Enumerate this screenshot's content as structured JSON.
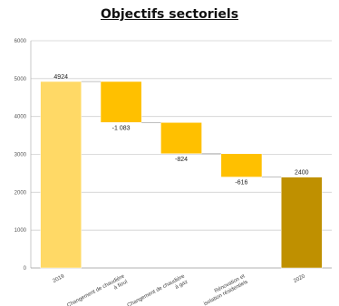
{
  "chart_data": {
    "type": "bar",
    "title": "Objectifs sectoriels",
    "xlabel": "",
    "ylabel": "",
    "ylim": [
      0,
      6000
    ],
    "yticks": [
      0,
      1000,
      2000,
      3000,
      4000,
      5000,
      6000
    ],
    "grid": true,
    "legend": "none",
    "categories": [
      "2019",
      "Changement de chaudière à fioul",
      "Changement de chaudière à gaz",
      "Rénovation et isolation résidentiels",
      "2020"
    ],
    "values": [
      4924,
      -1083,
      -824,
      -616,
      2400
    ],
    "data_labels": [
      "4924",
      "-1 083",
      "-824",
      "-616",
      "2400"
    ],
    "bar_kinds": [
      "total",
      "delta",
      "delta",
      "delta",
      "total"
    ],
    "colors": [
      "#FFD966",
      "#FFC000",
      "#FFC000",
      "#FFC000",
      "#BF9000"
    ]
  }
}
